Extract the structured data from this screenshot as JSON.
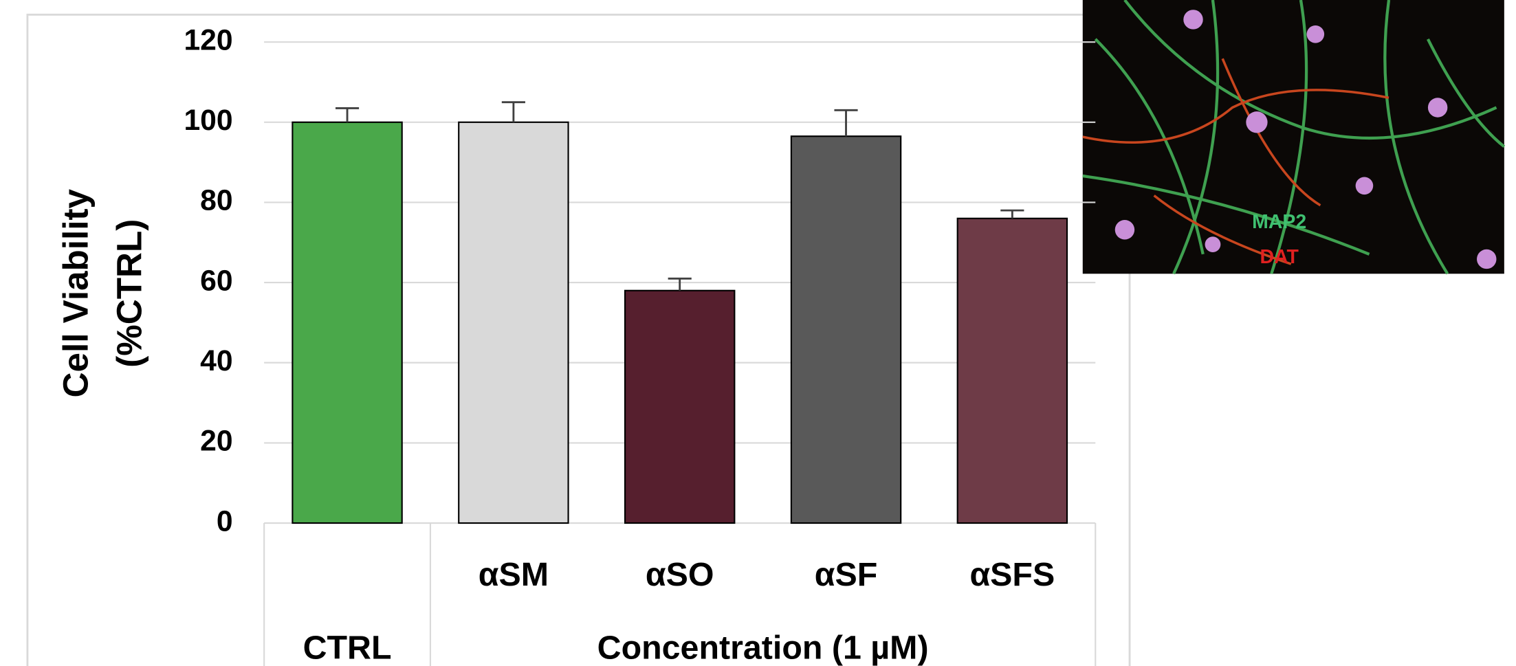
{
  "chart_data": {
    "type": "bar",
    "y_label": [
      "Cell Viability",
      "(%CTRL)"
    ],
    "groups": [
      {
        "label": "CTRL",
        "categories": [
          null
        ],
        "values": [
          100
        ],
        "errors": [
          3.5
        ],
        "colors": [
          "#4aa84a"
        ]
      },
      {
        "label": "Concentration (1 µM)",
        "categories": [
          "αSM",
          "αSO",
          "αSF",
          "αSFS"
        ],
        "values": [
          100,
          58,
          96.5,
          76
        ],
        "errors": [
          5,
          3,
          6.5,
          2
        ],
        "colors": [
          "#d9d9d9",
          "#561f2e",
          "#595959",
          "#6e3b47"
        ]
      }
    ],
    "ylim": [
      0,
      120
    ],
    "yticks": [
      0,
      20,
      40,
      60,
      80,
      100,
      120
    ],
    "grid": true
  },
  "image_labels": [
    "MAP2",
    "DAT"
  ]
}
